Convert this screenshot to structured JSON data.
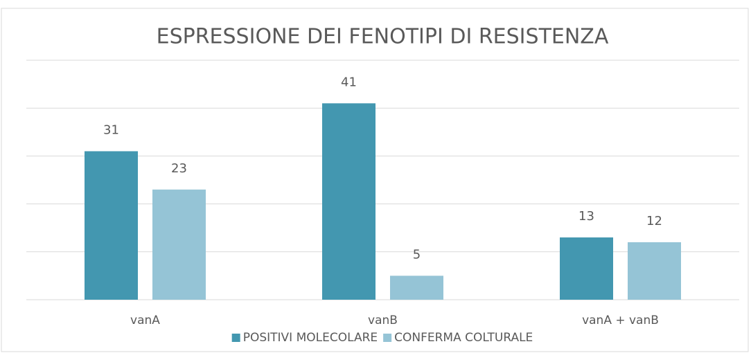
{
  "chart_data": {
    "type": "bar",
    "title": "ESPRESSIONE DEI FENOTIPI DI RESISTENZA",
    "categories": [
      "vanA",
      "vanB",
      "vanA + vanB"
    ],
    "series": [
      {
        "name": "POSITIVI MOLECOLARE",
        "color": "#4397b0",
        "values": [
          31,
          41,
          13
        ]
      },
      {
        "name": "CONFERMA COLTURALE",
        "color": "#95c4d6",
        "values": [
          23,
          5,
          12
        ]
      }
    ],
    "ylim": [
      0,
      50
    ],
    "yticks": [
      0,
      10,
      20,
      30,
      40,
      50
    ],
    "grid": true,
    "legend": "bottom"
  }
}
